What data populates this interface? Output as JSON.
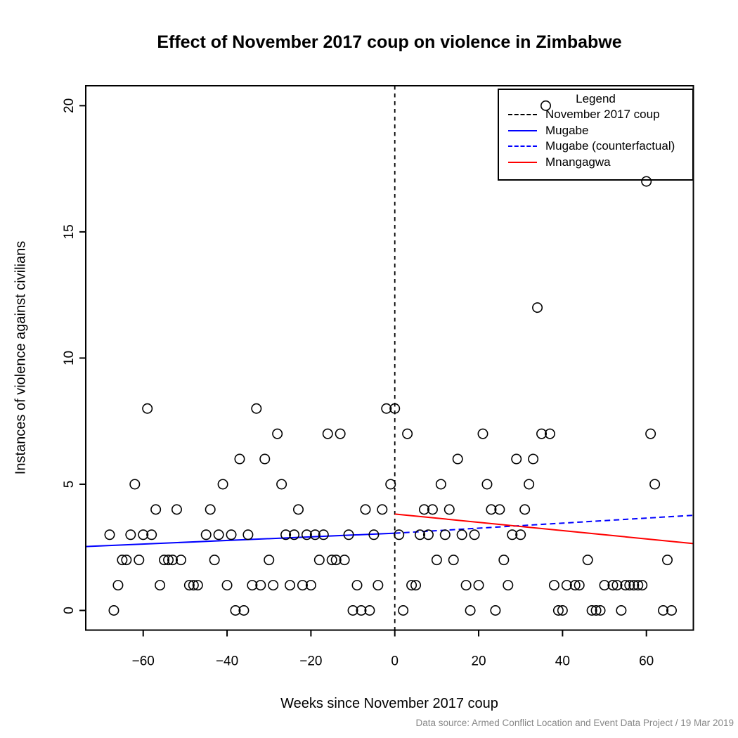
{
  "chart_data": {
    "type": "scatter",
    "title": "Effect of November 2017 coup on violence in Zimbabwe",
    "xlabel": "Weeks since November 2017 coup",
    "ylabel": "Instances of violence against civilians",
    "caption": "Data source: Armed Conflict Location and Event Data Project / 19 Mar 2019",
    "marker": "open-circle",
    "grid": false,
    "xlim": [
      -73.7,
      71.2
    ],
    "ylim": [
      -0.78,
      20.79
    ],
    "xticks": [
      -60,
      -40,
      -20,
      0,
      20,
      40,
      60
    ],
    "yticks": [
      0,
      5,
      10,
      15,
      20
    ],
    "colors": {
      "points": "#000000",
      "mugabe": "#0000ff",
      "counterfactual": "#0000ff",
      "mnangagwa": "#ff0000",
      "coup_line": "#000000",
      "caption_gray": "#888888"
    },
    "legend": {
      "title": "Legend",
      "position": "top-right",
      "entries": [
        {
          "label": "November 2017 coup",
          "color": "#000000",
          "style": "dashed"
        },
        {
          "label": "Mugabe",
          "color": "#0000ff",
          "style": "solid"
        },
        {
          "label": "Mugabe (counterfactual)",
          "color": "#0000ff",
          "style": "dashed"
        },
        {
          "label": "Mnangagwa",
          "color": "#ff0000",
          "style": "solid"
        }
      ]
    },
    "vline": {
      "x": 0,
      "style": "dashed",
      "color": "#000000"
    },
    "trend_lines": [
      {
        "name": "Mugabe",
        "color": "#0000ff",
        "style": "solid",
        "x": [
          -73.7,
          0
        ],
        "y": [
          2.53,
          3.06
        ]
      },
      {
        "name": "Mugabe (counterfactual)",
        "color": "#0000ff",
        "style": "dashed",
        "x": [
          0,
          71.2
        ],
        "y": [
          3.06,
          3.77
        ]
      },
      {
        "name": "Mnangagwa",
        "color": "#ff0000",
        "style": "solid",
        "x": [
          0,
          71.2
        ],
        "y": [
          3.82,
          2.65
        ]
      }
    ],
    "points": [
      [
        -68,
        3
      ],
      [
        -67,
        0
      ],
      [
        -66,
        1
      ],
      [
        -65,
        2
      ],
      [
        -64,
        2
      ],
      [
        -63,
        3
      ],
      [
        -62,
        5
      ],
      [
        -61,
        2
      ],
      [
        -60,
        3
      ],
      [
        -59,
        8
      ],
      [
        -58,
        3
      ],
      [
        -57,
        4
      ],
      [
        -56,
        1
      ],
      [
        -55,
        2
      ],
      [
        -54,
        2
      ],
      [
        -53,
        2
      ],
      [
        -52,
        4
      ],
      [
        -51,
        2
      ],
      [
        -49,
        1
      ],
      [
        -48,
        1
      ],
      [
        -47,
        1
      ],
      [
        -45,
        3
      ],
      [
        -44,
        4
      ],
      [
        -43,
        2
      ],
      [
        -42,
        3
      ],
      [
        -41,
        5
      ],
      [
        -40,
        1
      ],
      [
        -39,
        3
      ],
      [
        -38,
        0
      ],
      [
        -37,
        6
      ],
      [
        -36,
        0
      ],
      [
        -35,
        3
      ],
      [
        -34,
        1
      ],
      [
        -33,
        8
      ],
      [
        -32,
        1
      ],
      [
        -31,
        6
      ],
      [
        -30,
        2
      ],
      [
        -29,
        1
      ],
      [
        -28,
        7
      ],
      [
        -27,
        5
      ],
      [
        -26,
        3
      ],
      [
        -25,
        1
      ],
      [
        -24,
        3
      ],
      [
        -23,
        4
      ],
      [
        -22,
        1
      ],
      [
        -21,
        3
      ],
      [
        -20,
        1
      ],
      [
        -19,
        3
      ],
      [
        -18,
        2
      ],
      [
        -17,
        3
      ],
      [
        -16,
        7
      ],
      [
        -15,
        2
      ],
      [
        -14,
        2
      ],
      [
        -13,
        7
      ],
      [
        -12,
        2
      ],
      [
        -11,
        3
      ],
      [
        -10,
        0
      ],
      [
        -9,
        1
      ],
      [
        -8,
        0
      ],
      [
        -7,
        4
      ],
      [
        -6,
        0
      ],
      [
        -5,
        3
      ],
      [
        -4,
        1
      ],
      [
        -3,
        4
      ],
      [
        -2,
        8
      ],
      [
        -1,
        5
      ],
      [
        0,
        8
      ],
      [
        1,
        3
      ],
      [
        2,
        0
      ],
      [
        3,
        7
      ],
      [
        4,
        1
      ],
      [
        5,
        1
      ],
      [
        6,
        3
      ],
      [
        7,
        4
      ],
      [
        8,
        3
      ],
      [
        9,
        4
      ],
      [
        10,
        2
      ],
      [
        11,
        5
      ],
      [
        12,
        3
      ],
      [
        13,
        4
      ],
      [
        14,
        2
      ],
      [
        15,
        6
      ],
      [
        16,
        3
      ],
      [
        17,
        1
      ],
      [
        18,
        0
      ],
      [
        19,
        3
      ],
      [
        20,
        1
      ],
      [
        21,
        7
      ],
      [
        22,
        5
      ],
      [
        23,
        4
      ],
      [
        24,
        0
      ],
      [
        25,
        4
      ],
      [
        26,
        2
      ],
      [
        27,
        1
      ],
      [
        28,
        3
      ],
      [
        29,
        6
      ],
      [
        30,
        3
      ],
      [
        31,
        4
      ],
      [
        32,
        5
      ],
      [
        33,
        6
      ],
      [
        34,
        12
      ],
      [
        35,
        7
      ],
      [
        36,
        20
      ],
      [
        37,
        7
      ],
      [
        38,
        1
      ],
      [
        39,
        0
      ],
      [
        40,
        0
      ],
      [
        41,
        1
      ],
      [
        43,
        1
      ],
      [
        44,
        1
      ],
      [
        46,
        2
      ],
      [
        47,
        0
      ],
      [
        48,
        0
      ],
      [
        49,
        0
      ],
      [
        50,
        1
      ],
      [
        52,
        1
      ],
      [
        53,
        1
      ],
      [
        54,
        0
      ],
      [
        55,
        1
      ],
      [
        56,
        1
      ],
      [
        57,
        1
      ],
      [
        58,
        1
      ],
      [
        59,
        1
      ],
      [
        60,
        17
      ],
      [
        61,
        7
      ],
      [
        62,
        5
      ],
      [
        64,
        0
      ],
      [
        65,
        2
      ],
      [
        66,
        0
      ]
    ]
  }
}
